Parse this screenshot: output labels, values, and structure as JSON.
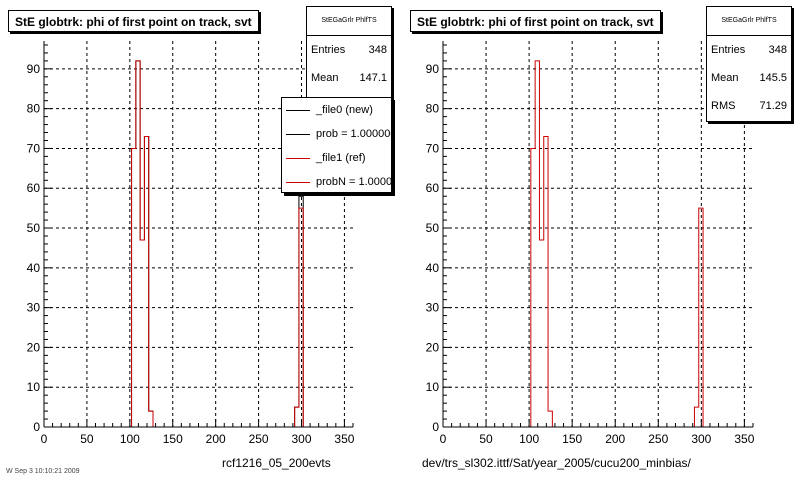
{
  "chart_data": [
    {
      "type": "bar",
      "title": "StE globtrk: phi of first point on track, svt",
      "xlim": [
        0,
        360
      ],
      "ylim": [
        0,
        97
      ],
      "xticks": [
        0,
        50,
        100,
        150,
        200,
        250,
        300,
        350
      ],
      "yticks": [
        0,
        10,
        20,
        30,
        40,
        50,
        60,
        70,
        80,
        90
      ],
      "grid": true,
      "bin_edges": [
        102,
        107,
        112,
        117,
        122,
        127,
        132,
        292,
        297,
        302,
        307
      ],
      "series": [
        {
          "name": "_file0 (new)",
          "color": "#000000",
          "values": [
            70,
            92,
            47,
            73,
            4,
            0,
            0,
            5,
            58,
            0
          ]
        },
        {
          "name": "_file1 (ref)",
          "color": "#cc0000",
          "values": [
            70,
            92,
            47,
            73,
            4,
            0,
            0,
            5,
            55,
            0
          ]
        }
      ],
      "footer": "rcf1216_05_200evts"
    },
    {
      "type": "bar",
      "title": "StE globtrk: phi of first point on track, svt",
      "xlim": [
        0,
        360
      ],
      "ylim": [
        0,
        97
      ],
      "xticks": [
        0,
        50,
        100,
        150,
        200,
        250,
        300,
        350
      ],
      "yticks": [
        0,
        10,
        20,
        30,
        40,
        50,
        60,
        70,
        80,
        90
      ],
      "grid": true,
      "bin_edges": [
        102,
        107,
        112,
        117,
        122,
        127,
        132,
        292,
        297,
        302,
        307
      ],
      "series": [
        {
          "name": "",
          "color": "#cc0000",
          "values": [
            70,
            92,
            47,
            73,
            4,
            0,
            0,
            5,
            55,
            0
          ]
        }
      ],
      "footer": "dev/trs_sl302.ittf/Sat/year_2005/cucu200_minbias/"
    }
  ],
  "stats_left": {
    "header": "StEGaGrlr PhlfTS",
    "rows": [
      {
        "label": "Entries",
        "value": "348"
      },
      {
        "label": "Mean",
        "value": "147.1"
      }
    ]
  },
  "stats_right": {
    "header": "StEGaGrlr PhlfTS",
    "rows": [
      {
        "label": "Entries",
        "value": "348"
      },
      {
        "label": "Mean",
        "value": "145.5"
      },
      {
        "label": "RMS",
        "value": "71.29"
      }
    ]
  },
  "legend": {
    "items": [
      {
        "label": "_file0 (new)",
        "color": "#000000"
      },
      {
        "label": "prob = 1.000000",
        "color": "#000000"
      },
      {
        "label": "_file1 (ref)",
        "color": "#cc0000"
      },
      {
        "label": "probN = 1.000000",
        "color": "#cc0000"
      }
    ]
  },
  "footer_left_small": "W Sep 3 10:10:21 2009"
}
